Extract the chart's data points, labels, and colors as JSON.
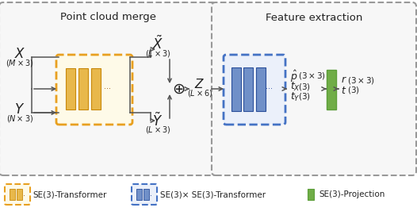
{
  "fig_width": 5.26,
  "fig_height": 2.76,
  "dpi": 100,
  "bg_color": "#ffffff",
  "section1_title": "Point cloud merge",
  "section2_title": "Feature extraction",
  "legend1": "SE(3)-Transformer",
  "legend2": "SE(3)× SE(3)-Transformer",
  "legend3": "SE(3)-Projection",
  "transformer1_edge": "#E8A020",
  "transformer1_fill": "#FEFAE8",
  "transformer1_bar": "#E8B84B",
  "transformer2_edge": "#4472C4",
  "transformer2_fill": "#EBF0FA",
  "transformer2_bar": "#7090C8",
  "projection_edge": "#5C9E3A",
  "projection_fill": "#70AD47",
  "section_dash_color": "#999999",
  "arrow_color": "#555555",
  "text_color": "#222222"
}
